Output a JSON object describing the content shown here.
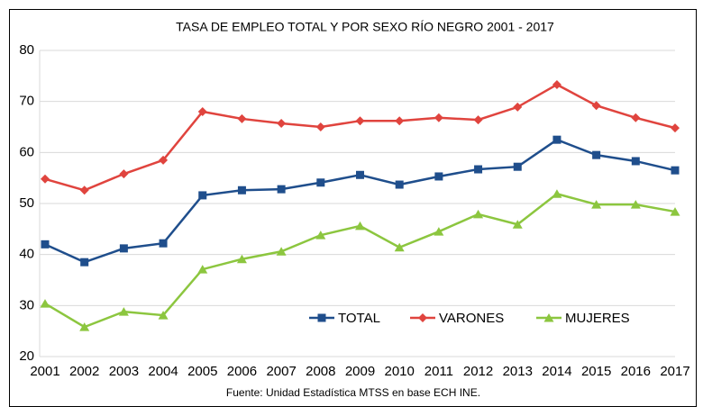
{
  "chart_data": {
    "type": "line",
    "title": "TASA DE EMPLEO TOTAL Y POR SEXO RÍO NEGRO 2001 - 2017",
    "note": "Fuente: Unidad Estadística MTSS en base ECH INE.",
    "categories": [
      "2001",
      "2002",
      "2003",
      "2004",
      "2005",
      "2006",
      "2007",
      "2008",
      "2009",
      "2010",
      "2011",
      "2012",
      "2013",
      "2014",
      "2015",
      "2016",
      "2017"
    ],
    "series": [
      {
        "name": "TOTAL",
        "color": "#1f4e8c",
        "marker": "square",
        "values": [
          42.0,
          38.5,
          41.2,
          42.2,
          51.6,
          52.6,
          52.8,
          54.1,
          55.6,
          53.7,
          55.3,
          56.7,
          57.2,
          62.5,
          59.5,
          58.3,
          56.5
        ]
      },
      {
        "name": "VARONES",
        "color": "#e0443e",
        "marker": "diamond",
        "values": [
          54.8,
          52.6,
          55.8,
          58.5,
          68.0,
          66.6,
          65.7,
          65.0,
          66.2,
          66.2,
          66.8,
          66.4,
          68.9,
          73.3,
          69.2,
          66.8,
          64.8
        ]
      },
      {
        "name": "MUJERES",
        "color": "#8cc63f",
        "marker": "triangle",
        "values": [
          30.4,
          25.8,
          28.8,
          28.1,
          37.1,
          39.1,
          40.6,
          43.8,
          45.6,
          41.4,
          44.5,
          47.9,
          45.9,
          51.9,
          49.8,
          49.8,
          48.4
        ]
      }
    ],
    "ylim": [
      20,
      80
    ],
    "yticks": [
      20,
      30,
      40,
      50,
      60,
      70,
      80
    ],
    "grid": true,
    "legend": "bottom"
  }
}
